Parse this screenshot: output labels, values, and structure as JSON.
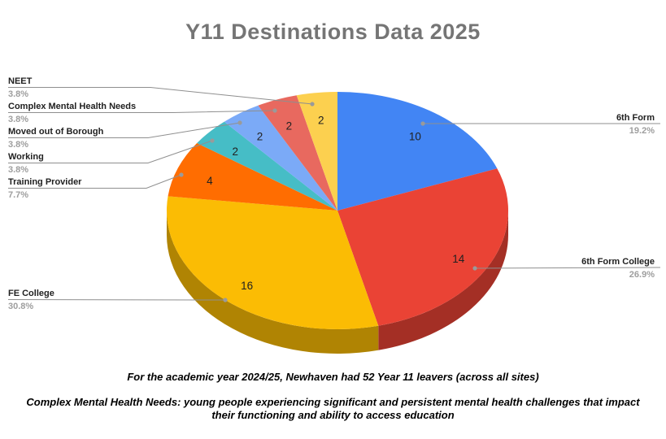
{
  "title": "Y11 Destinations Data 2025",
  "chart_data": {
    "type": "pie",
    "style": "3d",
    "title": "Y11 Destinations Data 2025",
    "total": 52,
    "start_angle_deg": 0,
    "direction": "clockwise",
    "legend_position": "labeled-callouts",
    "slices": [
      {
        "label": "6th Form",
        "value": 10,
        "pct": "19.2%",
        "color": "#4285f4"
      },
      {
        "label": "6th Form College",
        "value": 14,
        "pct": "26.9%",
        "color": "#ea4335"
      },
      {
        "label": "FE College",
        "value": 16,
        "pct": "30.8%",
        "color": "#fbbc04"
      },
      {
        "label": "Training Provider",
        "value": 4,
        "pct": "7.7%",
        "color": "#ff6d01"
      },
      {
        "label": "Working",
        "value": 2,
        "pct": "3.8%",
        "color": "#46bdc6"
      },
      {
        "label": "Moved out of Borough",
        "value": 2,
        "pct": "3.8%",
        "color": "#7baaf7"
      },
      {
        "label": "Complex Mental Health Needs",
        "value": 2,
        "pct": "3.8%",
        "color": "#e8695f"
      },
      {
        "label": "NEET",
        "value": 2,
        "pct": "3.8%",
        "color": "#fcd04f"
      }
    ],
    "value_label_color": "#212121",
    "callout_line_color": "#8f8f8f"
  },
  "footnotes": {
    "line1": "For the academic year 2024/25, Newhaven had 52 Year 11 leavers (across all sites)",
    "line2": "Complex Mental Health Needs: young people experiencing significant and persistent mental health challenges that impact their functioning and ability to access education"
  }
}
